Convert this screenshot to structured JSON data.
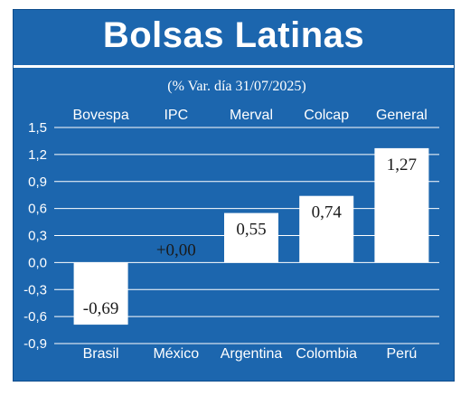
{
  "header": {
    "title": "Bolsas Latinas",
    "subtitle": "(% Var. día 31/07/2025)"
  },
  "colors": {
    "background": "#1c66ae",
    "bar": "#ffffff",
    "text": "#ffffff",
    "grid": "#ffffff"
  },
  "chart_data": {
    "type": "bar",
    "title": "Bolsas Latinas",
    "subtitle": "(% Var. día 31/07/2025)",
    "indices": [
      "Bovespa",
      "IPC",
      "Merval",
      "Colcap",
      "General"
    ],
    "categories": [
      "Brasil",
      "México",
      "Argentina",
      "Colombia",
      "Perú"
    ],
    "values": [
      -0.69,
      0.0,
      0.55,
      0.74,
      1.27
    ],
    "value_labels": [
      "-0,69",
      "+0,00",
      "0,55",
      "0,74",
      "1,27"
    ],
    "yticks": [
      "1,5",
      "1,2",
      "0,9",
      "0,6",
      "0,3",
      "0,0",
      "-0,3",
      "-0,6",
      "-0,9"
    ],
    "ytick_values": [
      1.5,
      1.2,
      0.9,
      0.6,
      0.3,
      0.0,
      -0.3,
      -0.6,
      -0.9
    ],
    "ylim": [
      -0.9,
      1.5
    ],
    "grid": true,
    "legend": "none"
  }
}
